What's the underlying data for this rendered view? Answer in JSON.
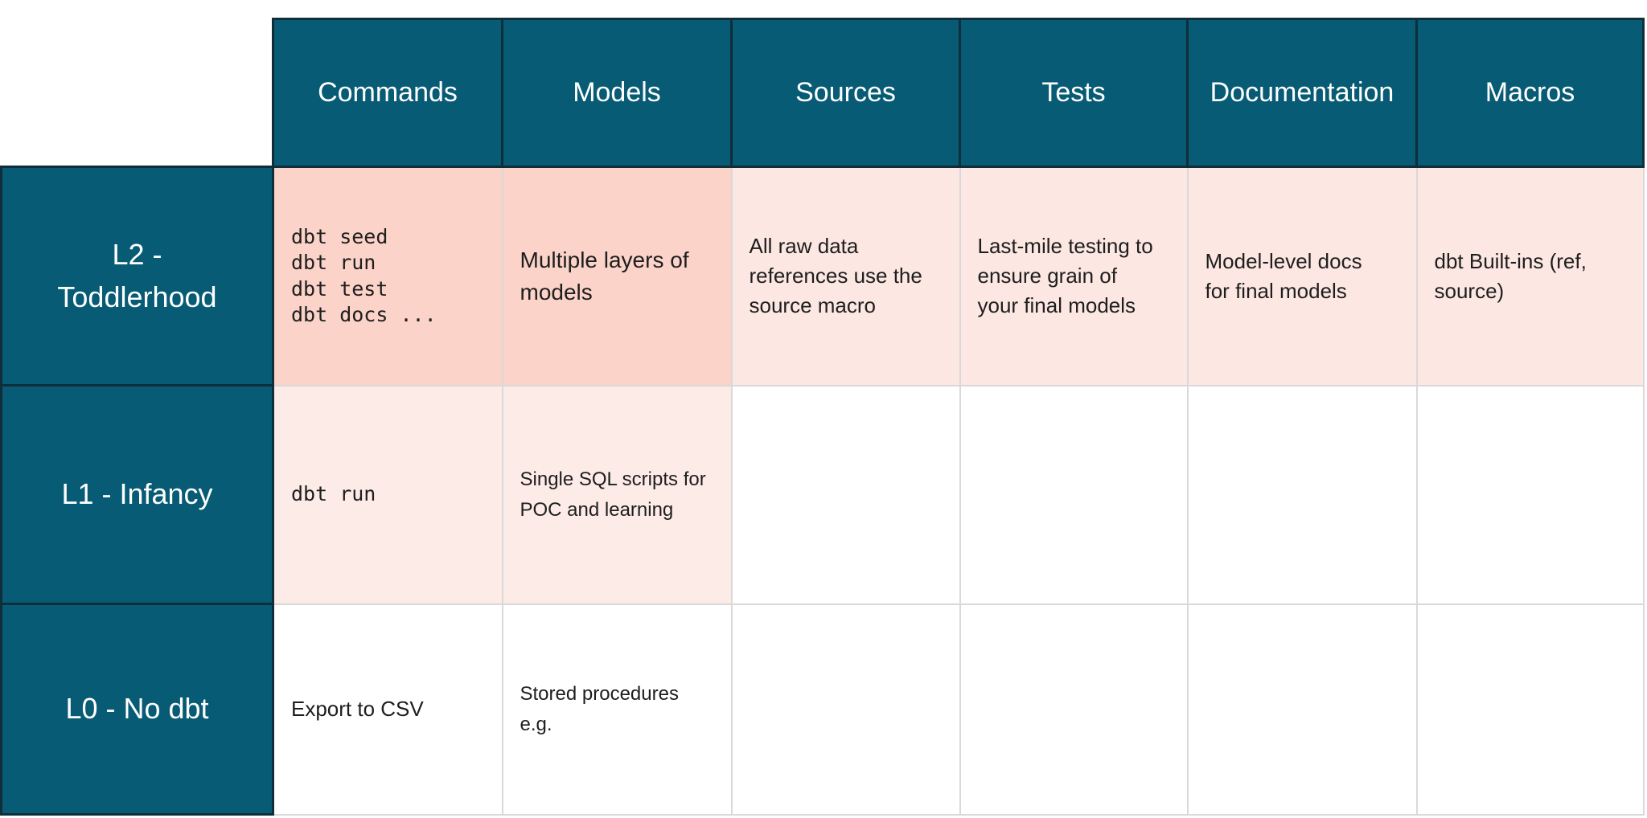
{
  "colors": {
    "header_teal": "#075B74",
    "header_border": "#0E2E3A",
    "l2_commands_models_pink": "#FBD3C9",
    "l2_other_pink": "#FCE7E2",
    "l1_pink": "#FCEBE7",
    "grid_line": "#D9D9D9",
    "body_text": "#1E1E1E",
    "header_text": "#FFFFFF"
  },
  "table": {
    "columns": [
      "Commands",
      "Models",
      "Sources",
      "Tests",
      "Documentation",
      "Macros"
    ],
    "rows": [
      {
        "label": "L2 -\nToddlerhood",
        "cells": [
          "dbt seed\ndbt run\ndbt test\ndbt docs ...",
          "Multiple layers of\nmodels",
          "All raw data\nreferences use the\nsource macro",
          "Last-mile testing to\nensure grain of\nyour final models",
          "Model-level docs\nfor final models",
          "dbt Built-ins (ref,\nsource)"
        ]
      },
      {
        "label": "L1 - Infancy",
        "cells": [
          "dbt run",
          "Single SQL scripts for\nPOC and learning",
          "",
          "",
          "",
          ""
        ]
      },
      {
        "label": "L0 - No dbt",
        "cells": [
          "Export to CSV",
          "Stored procedures\ne.g.",
          "",
          "",
          "",
          ""
        ]
      }
    ]
  }
}
